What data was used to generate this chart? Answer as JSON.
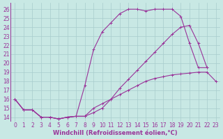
{
  "background_color": "#c8e8e4",
  "grid_color": "#a8cccc",
  "line_color": "#993399",
  "marker": "+",
  "markersize": 3.5,
  "linewidth": 0.8,
  "xlabel": "Windchill (Refroidissement éolien,°C)",
  "xlabel_fontsize": 6,
  "tick_fontsize": 5.5,
  "xlim": [
    -0.5,
    23.5
  ],
  "ylim": [
    13.5,
    26.7
  ],
  "yticks": [
    14,
    15,
    16,
    17,
    18,
    19,
    20,
    21,
    22,
    23,
    24,
    25,
    26
  ],
  "xticks": [
    0,
    1,
    2,
    3,
    4,
    5,
    6,
    7,
    8,
    9,
    10,
    11,
    12,
    13,
    14,
    15,
    16,
    17,
    18,
    19,
    20,
    21,
    22,
    23
  ],
  "series1_x": [
    0,
    1,
    2,
    3,
    4,
    5,
    6,
    7,
    8,
    9,
    10,
    11,
    12,
    13,
    14,
    15,
    16,
    17,
    18,
    19,
    20,
    21,
    22,
    23
  ],
  "series1_y": [
    16.0,
    14.8,
    14.8,
    14.0,
    14.0,
    13.8,
    14.0,
    14.1,
    14.1,
    15.0,
    15.5,
    16.0,
    16.5,
    17.0,
    17.5,
    18.0,
    18.3,
    18.5,
    18.7,
    18.8,
    18.9,
    19.0,
    19.0,
    18.0
  ],
  "series2_x": [
    0,
    1,
    2,
    3,
    4,
    5,
    6,
    7,
    8,
    9,
    10,
    11,
    12,
    13,
    14,
    15,
    16,
    17,
    18,
    19,
    20,
    21,
    22
  ],
  "series2_y": [
    16.0,
    14.8,
    14.8,
    14.0,
    14.0,
    13.8,
    14.0,
    14.1,
    17.5,
    21.5,
    23.5,
    24.5,
    25.5,
    26.0,
    26.0,
    25.8,
    26.0,
    26.0,
    26.0,
    25.2,
    22.2,
    19.5,
    19.5
  ],
  "series3_x": [
    0,
    1,
    2,
    3,
    4,
    5,
    6,
    7,
    8,
    9,
    10,
    11,
    12,
    13,
    14,
    15,
    16,
    17,
    18,
    19,
    20,
    21,
    22
  ],
  "series3_y": [
    16.0,
    14.8,
    14.8,
    14.0,
    14.0,
    13.8,
    14.0,
    14.1,
    14.1,
    14.5,
    15.0,
    16.0,
    17.2,
    18.2,
    19.2,
    20.2,
    21.2,
    22.2,
    23.2,
    24.0,
    24.2,
    22.2,
    19.5
  ]
}
